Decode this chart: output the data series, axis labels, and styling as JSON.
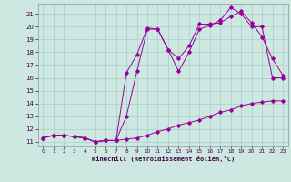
{
  "xlabel": "Windchill (Refroidissement éolien,°C)",
  "bg_color": "#cce8e0",
  "grid_color": "#aacccc",
  "line_color": "#990099",
  "xlim": [
    -0.5,
    23.5
  ],
  "ylim": [
    10.7,
    21.8
  ],
  "yticks": [
    11,
    12,
    13,
    14,
    15,
    16,
    17,
    18,
    19,
    20,
    21
  ],
  "xticks": [
    0,
    1,
    2,
    3,
    4,
    5,
    6,
    7,
    8,
    9,
    10,
    11,
    12,
    13,
    14,
    15,
    16,
    17,
    18,
    19,
    20,
    21,
    22,
    23
  ],
  "line1_x": [
    0,
    1,
    2,
    3,
    4,
    5,
    6,
    7,
    8,
    9,
    10,
    11,
    12,
    13,
    14,
    15,
    16,
    17,
    18,
    19,
    20,
    21,
    22,
    23
  ],
  "line1_y": [
    11.3,
    11.5,
    11.5,
    11.4,
    11.3,
    11.0,
    11.1,
    11.1,
    11.2,
    11.3,
    11.5,
    11.8,
    12.0,
    12.3,
    12.5,
    12.7,
    13.0,
    13.3,
    13.5,
    13.8,
    14.0,
    14.1,
    14.2,
    14.2
  ],
  "line2_x": [
    0,
    1,
    2,
    3,
    4,
    5,
    6,
    7,
    8,
    9,
    10,
    11,
    12,
    13,
    14,
    15,
    16,
    17,
    18,
    19,
    20,
    21,
    22,
    23
  ],
  "line2_y": [
    11.3,
    11.5,
    11.5,
    11.4,
    11.3,
    11.0,
    11.1,
    11.1,
    16.4,
    17.8,
    19.9,
    19.8,
    18.2,
    16.5,
    18.0,
    19.8,
    20.1,
    20.5,
    21.5,
    21.0,
    20.0,
    20.0,
    16.0,
    16.0
  ],
  "line3_x": [
    0,
    1,
    2,
    3,
    4,
    5,
    6,
    7,
    8,
    9,
    10,
    11,
    12,
    13,
    14,
    15,
    16,
    17,
    18,
    19,
    20,
    21,
    22,
    23
  ],
  "line3_y": [
    11.3,
    11.5,
    11.5,
    11.4,
    11.3,
    11.0,
    11.1,
    11.1,
    13.0,
    16.5,
    19.8,
    19.8,
    18.2,
    17.5,
    18.5,
    20.2,
    20.2,
    20.3,
    20.8,
    21.2,
    20.3,
    19.2,
    17.5,
    16.2
  ]
}
